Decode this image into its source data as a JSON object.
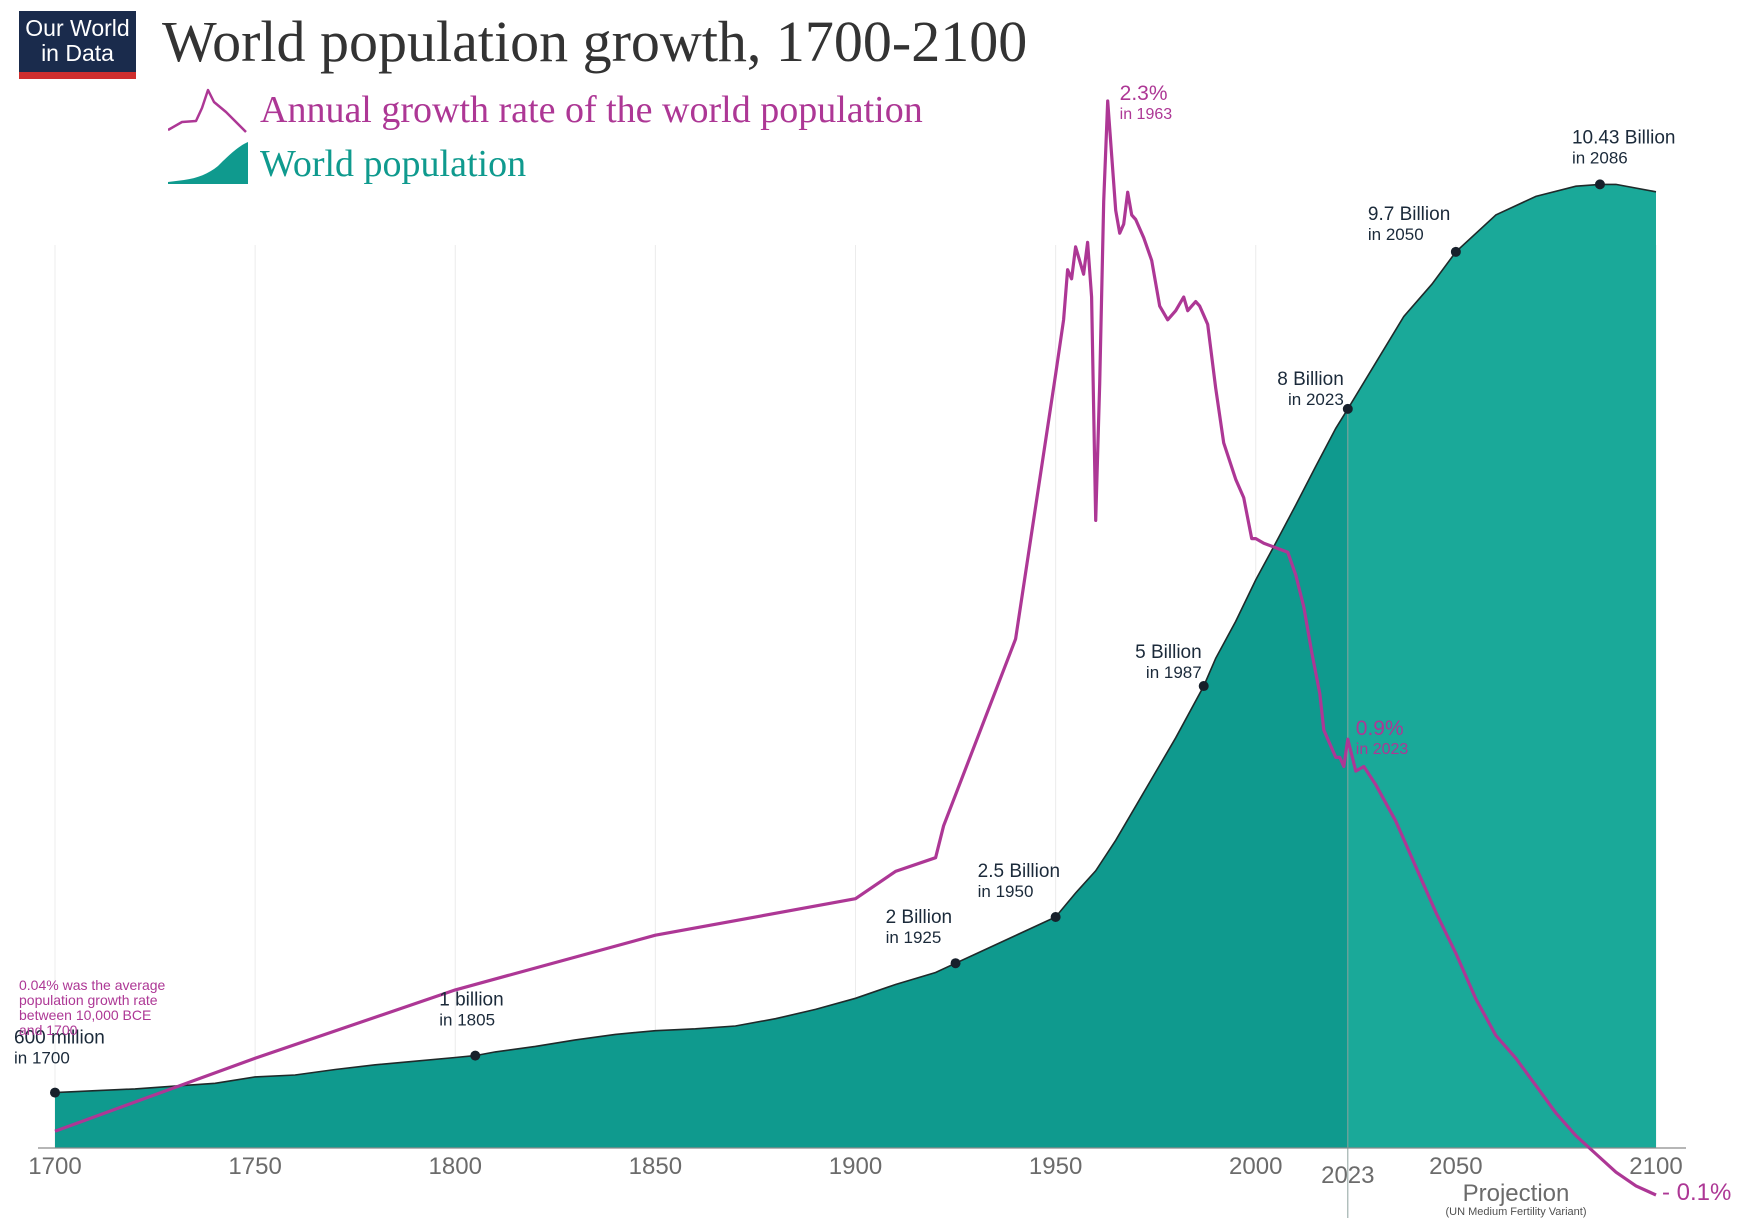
{
  "logo": {
    "line1": "Our World",
    "line2": "in Data"
  },
  "title": "World population growth, 1700-2100",
  "legend": {
    "growth_label": "Annual growth rate of the world population",
    "population_label": "World population"
  },
  "colors": {
    "population_fill": "#0f9a8e",
    "projection_fill": "#1aa999",
    "growth_line": "#ad3795",
    "marker": "#17202b",
    "text": "#1b2a3a",
    "tick": "#6b6b6b"
  },
  "chart_data": {
    "type": "area",
    "title": "World population growth, 1700-2100",
    "x_ticks": [
      "1700",
      "1750",
      "1800",
      "1850",
      "1900",
      "1950",
      "2000",
      "2050",
      "2100"
    ],
    "xlim": [
      1700,
      2100
    ],
    "projection_start_year": 2023,
    "projection_tick": "2023",
    "projection_label": "Projection",
    "projection_sublabel": "(UN Medium Fertility Variant)",
    "series": [
      {
        "name": "World population",
        "unit": "billion",
        "ylim": [
          0,
          11.3
        ],
        "points": [
          [
            1700,
            0.6
          ],
          [
            1710,
            0.62
          ],
          [
            1720,
            0.64
          ],
          [
            1730,
            0.67
          ],
          [
            1740,
            0.7
          ],
          [
            1750,
            0.77
          ],
          [
            1760,
            0.79
          ],
          [
            1770,
            0.85
          ],
          [
            1780,
            0.9
          ],
          [
            1790,
            0.94
          ],
          [
            1800,
            0.98
          ],
          [
            1805,
            1.0
          ],
          [
            1810,
            1.04
          ],
          [
            1820,
            1.1
          ],
          [
            1830,
            1.17
          ],
          [
            1840,
            1.23
          ],
          [
            1850,
            1.27
          ],
          [
            1860,
            1.29
          ],
          [
            1870,
            1.32
          ],
          [
            1880,
            1.4
          ],
          [
            1890,
            1.5
          ],
          [
            1900,
            1.62
          ],
          [
            1910,
            1.77
          ],
          [
            1920,
            1.9
          ],
          [
            1925,
            2.0
          ],
          [
            1930,
            2.1
          ],
          [
            1940,
            2.3
          ],
          [
            1950,
            2.5
          ],
          [
            1955,
            2.76
          ],
          [
            1960,
            3.0
          ],
          [
            1965,
            3.33
          ],
          [
            1970,
            3.7
          ],
          [
            1975,
            4.07
          ],
          [
            1980,
            4.44
          ],
          [
            1987,
            5.0
          ],
          [
            1990,
            5.3
          ],
          [
            1995,
            5.7
          ],
          [
            2000,
            6.15
          ],
          [
            2005,
            6.55
          ],
          [
            2010,
            6.96
          ],
          [
            2015,
            7.38
          ],
          [
            2020,
            7.79
          ],
          [
            2023,
            8.0
          ],
          [
            2030,
            8.5
          ],
          [
            2037,
            9.0
          ],
          [
            2044,
            9.35
          ],
          [
            2050,
            9.7
          ],
          [
            2060,
            10.1
          ],
          [
            2070,
            10.3
          ],
          [
            2080,
            10.41
          ],
          [
            2086,
            10.43
          ],
          [
            2090,
            10.43
          ],
          [
            2100,
            10.35
          ]
        ]
      },
      {
        "name": "Annual growth rate of the world population",
        "unit": "%",
        "ylim": [
          -0.1,
          2.3
        ],
        "points": [
          [
            1700,
            0.04
          ],
          [
            1750,
            0.2
          ],
          [
            1800,
            0.35
          ],
          [
            1850,
            0.47
          ],
          [
            1900,
            0.55
          ],
          [
            1910,
            0.61
          ],
          [
            1920,
            0.64
          ],
          [
            1922,
            0.71
          ],
          [
            1940,
            1.12
          ],
          [
            1950,
            1.7
          ],
          [
            1952,
            1.82
          ],
          [
            1953,
            1.93
          ],
          [
            1954,
            1.91
          ],
          [
            1955,
            1.98
          ],
          [
            1957,
            1.92
          ],
          [
            1958,
            1.99
          ],
          [
            1959,
            1.87
          ],
          [
            1960,
            1.38
          ],
          [
            1961,
            1.68
          ],
          [
            1962,
            2.08
          ],
          [
            1963,
            2.3
          ],
          [
            1964,
            2.18
          ],
          [
            1965,
            2.06
          ],
          [
            1966,
            2.01
          ],
          [
            1967,
            2.03
          ],
          [
            1968,
            2.1
          ],
          [
            1969,
            2.05
          ],
          [
            1970,
            2.04
          ],
          [
            1972,
            2.0
          ],
          [
            1974,
            1.95
          ],
          [
            1976,
            1.85
          ],
          [
            1978,
            1.82
          ],
          [
            1980,
            1.84
          ],
          [
            1982,
            1.87
          ],
          [
            1983,
            1.84
          ],
          [
            1984,
            1.85
          ],
          [
            1985,
            1.86
          ],
          [
            1986,
            1.85
          ],
          [
            1987,
            1.83
          ],
          [
            1988,
            1.81
          ],
          [
            1990,
            1.67
          ],
          [
            1992,
            1.55
          ],
          [
            1995,
            1.47
          ],
          [
            1997,
            1.43
          ],
          [
            1999,
            1.34
          ],
          [
            2000,
            1.34
          ],
          [
            2002,
            1.33
          ],
          [
            2005,
            1.32
          ],
          [
            2008,
            1.31
          ],
          [
            2010,
            1.26
          ],
          [
            2012,
            1.19
          ],
          [
            2014,
            1.09
          ],
          [
            2016,
            1.0
          ],
          [
            2017,
            0.92
          ],
          [
            2018,
            0.9
          ],
          [
            2019,
            0.88
          ],
          [
            2020,
            0.86
          ],
          [
            2021,
            0.86
          ],
          [
            2022,
            0.84
          ],
          [
            2023,
            0.9
          ],
          [
            2025,
            0.83
          ],
          [
            2027,
            0.84
          ],
          [
            2030,
            0.8
          ],
          [
            2035,
            0.72
          ],
          [
            2040,
            0.62
          ],
          [
            2045,
            0.52
          ],
          [
            2050,
            0.43
          ],
          [
            2055,
            0.33
          ],
          [
            2060,
            0.25
          ],
          [
            2065,
            0.2
          ],
          [
            2070,
            0.14
          ],
          [
            2075,
            0.08
          ],
          [
            2080,
            0.03
          ],
          [
            2085,
            -0.01
          ],
          [
            2090,
            -0.05
          ],
          [
            2095,
            -0.08
          ],
          [
            2100,
            -0.1
          ]
        ]
      }
    ],
    "population_annotations": [
      {
        "year": 1700,
        "value": 0.6,
        "label": "600 million",
        "sub": "in 1700"
      },
      {
        "year": 1805,
        "value": 1.0,
        "label": "1 billion",
        "sub": "in 1805"
      },
      {
        "year": 1925,
        "value": 2.0,
        "label": "2 Billion",
        "sub": "in 1925"
      },
      {
        "year": 1950,
        "value": 2.5,
        "label": "2.5 Billion",
        "sub": "in 1950"
      },
      {
        "year": 1987,
        "value": 5.0,
        "label": "5 Billion",
        "sub": "in 1987"
      },
      {
        "year": 2023,
        "value": 8.0,
        "label": "8 Billion",
        "sub": "in 2023"
      },
      {
        "year": 2050,
        "value": 9.7,
        "label": "9.7 Billion",
        "sub": "in 2050"
      },
      {
        "year": 2086,
        "value": 10.43,
        "label": "10.43 Billion",
        "sub": "in 2086"
      }
    ],
    "growth_annotations": {
      "peak": {
        "label": "2.3%",
        "sub": "in 1963"
      },
      "current": {
        "label": "0.9%",
        "sub": "in 2023"
      },
      "end": {
        "label": "- 0.1%"
      },
      "note_lines": [
        "0.04% was the average",
        "population growth rate",
        "between 10,000 BCE",
        "and 1700"
      ]
    }
  }
}
